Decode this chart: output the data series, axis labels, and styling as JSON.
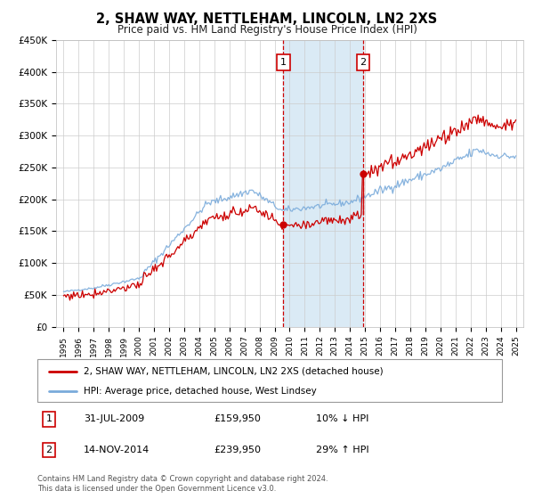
{
  "title": "2, SHAW WAY, NETTLEHAM, LINCOLN, LN2 2XS",
  "subtitle": "Price paid vs. HM Land Registry's House Price Index (HPI)",
  "legend_line1": "2, SHAW WAY, NETTLEHAM, LINCOLN, LN2 2XS (detached house)",
  "legend_line2": "HPI: Average price, detached house, West Lindsey",
  "annotation1_date": "31-JUL-2009",
  "annotation1_price": "£159,950",
  "annotation1_hpi": "10% ↓ HPI",
  "annotation2_date": "14-NOV-2014",
  "annotation2_price": "£239,950",
  "annotation2_hpi": "29% ↑ HPI",
  "footer": "Contains HM Land Registry data © Crown copyright and database right 2024.\nThis data is licensed under the Open Government Licence v3.0.",
  "red_color": "#cc0000",
  "blue_color": "#7aabdb",
  "shade_color": "#daeaf5",
  "ylim": [
    0,
    450000
  ],
  "sale1_year": 2009.58,
  "sale1_value": 159950,
  "sale2_year": 2014.87,
  "sale2_value": 239950
}
